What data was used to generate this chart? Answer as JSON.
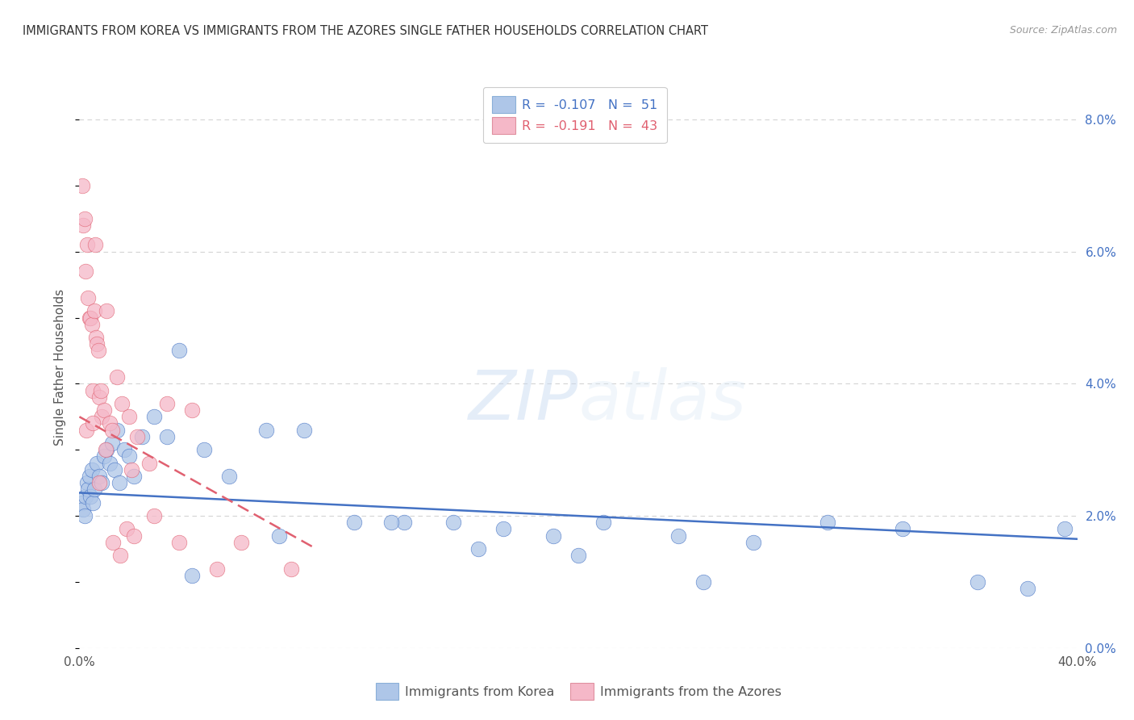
{
  "title": "IMMIGRANTS FROM KOREA VS IMMIGRANTS FROM THE AZORES SINGLE FATHER HOUSEHOLDS CORRELATION CHART",
  "source": "Source: ZipAtlas.com",
  "ylabel": "Single Father Households",
  "legend_korea": "R =  -0.107   N =  51",
  "legend_azores": "R =  -0.191   N =  43",
  "korea_color": "#aec6e8",
  "azores_color": "#f5b8c8",
  "korea_line_color": "#4472c4",
  "azores_line_color": "#e06070",
  "watermark_zip": "ZIP",
  "watermark_atlas": "atlas",
  "xlim": [
    0,
    40
  ],
  "ylim": [
    0,
    8.5
  ],
  "xticks": [
    0,
    40
  ],
  "xticklabels": [
    "0.0%",
    "40.0%"
  ],
  "yticks_right": [
    0.0,
    2.0,
    4.0,
    6.0,
    8.0
  ],
  "background_color": "#ffffff",
  "grid_color": "#d0d0d0",
  "korea_x": [
    0.1,
    0.15,
    0.2,
    0.25,
    0.3,
    0.35,
    0.4,
    0.45,
    0.5,
    0.55,
    0.6,
    0.7,
    0.8,
    0.9,
    1.0,
    1.1,
    1.2,
    1.3,
    1.4,
    1.5,
    1.6,
    1.8,
    2.0,
    2.2,
    2.5,
    3.0,
    3.5,
    4.0,
    5.0,
    6.0,
    7.5,
    9.0,
    11.0,
    13.0,
    15.0,
    17.0,
    19.0,
    21.0,
    24.0,
    27.0,
    30.0,
    33.0,
    36.0,
    38.0,
    39.5,
    12.5,
    25.0,
    20.0,
    16.0,
    8.0,
    4.5
  ],
  "korea_y": [
    2.2,
    2.1,
    2.0,
    2.3,
    2.5,
    2.4,
    2.6,
    2.3,
    2.7,
    2.2,
    2.4,
    2.8,
    2.6,
    2.5,
    2.9,
    3.0,
    2.8,
    3.1,
    2.7,
    3.3,
    2.5,
    3.0,
    2.9,
    2.6,
    3.2,
    3.5,
    3.2,
    4.5,
    3.0,
    2.6,
    3.3,
    3.3,
    1.9,
    1.9,
    1.9,
    1.8,
    1.7,
    1.9,
    1.7,
    1.6,
    1.9,
    1.8,
    1.0,
    0.9,
    1.8,
    1.9,
    1.0,
    1.4,
    1.5,
    1.7,
    1.1
  ],
  "azores_x": [
    0.1,
    0.15,
    0.2,
    0.25,
    0.3,
    0.35,
    0.4,
    0.45,
    0.5,
    0.55,
    0.6,
    0.65,
    0.7,
    0.75,
    0.8,
    0.85,
    0.9,
    1.0,
    1.1,
    1.2,
    1.3,
    1.5,
    1.7,
    2.0,
    2.3,
    2.8,
    3.5,
    4.5,
    6.5,
    8.5,
    0.28,
    0.52,
    0.78,
    1.05,
    1.35,
    1.65,
    2.1,
    3.0,
    4.0,
    5.5,
    1.9,
    2.2,
    0.62
  ],
  "azores_y": [
    7.0,
    6.4,
    6.5,
    5.7,
    6.1,
    5.3,
    5.0,
    5.0,
    4.9,
    3.9,
    5.1,
    4.7,
    4.6,
    4.5,
    3.8,
    3.9,
    3.5,
    3.6,
    5.1,
    3.4,
    3.3,
    4.1,
    3.7,
    3.5,
    3.2,
    2.8,
    3.7,
    3.6,
    1.6,
    1.2,
    3.3,
    3.4,
    2.5,
    3.0,
    1.6,
    1.4,
    2.7,
    2.0,
    1.6,
    1.2,
    1.8,
    1.7,
    6.1
  ],
  "korea_line_x": [
    0,
    40
  ],
  "korea_line_y": [
    2.35,
    1.65
  ],
  "azores_line_x": [
    0,
    9.5
  ],
  "azores_line_y": [
    3.5,
    1.5
  ]
}
